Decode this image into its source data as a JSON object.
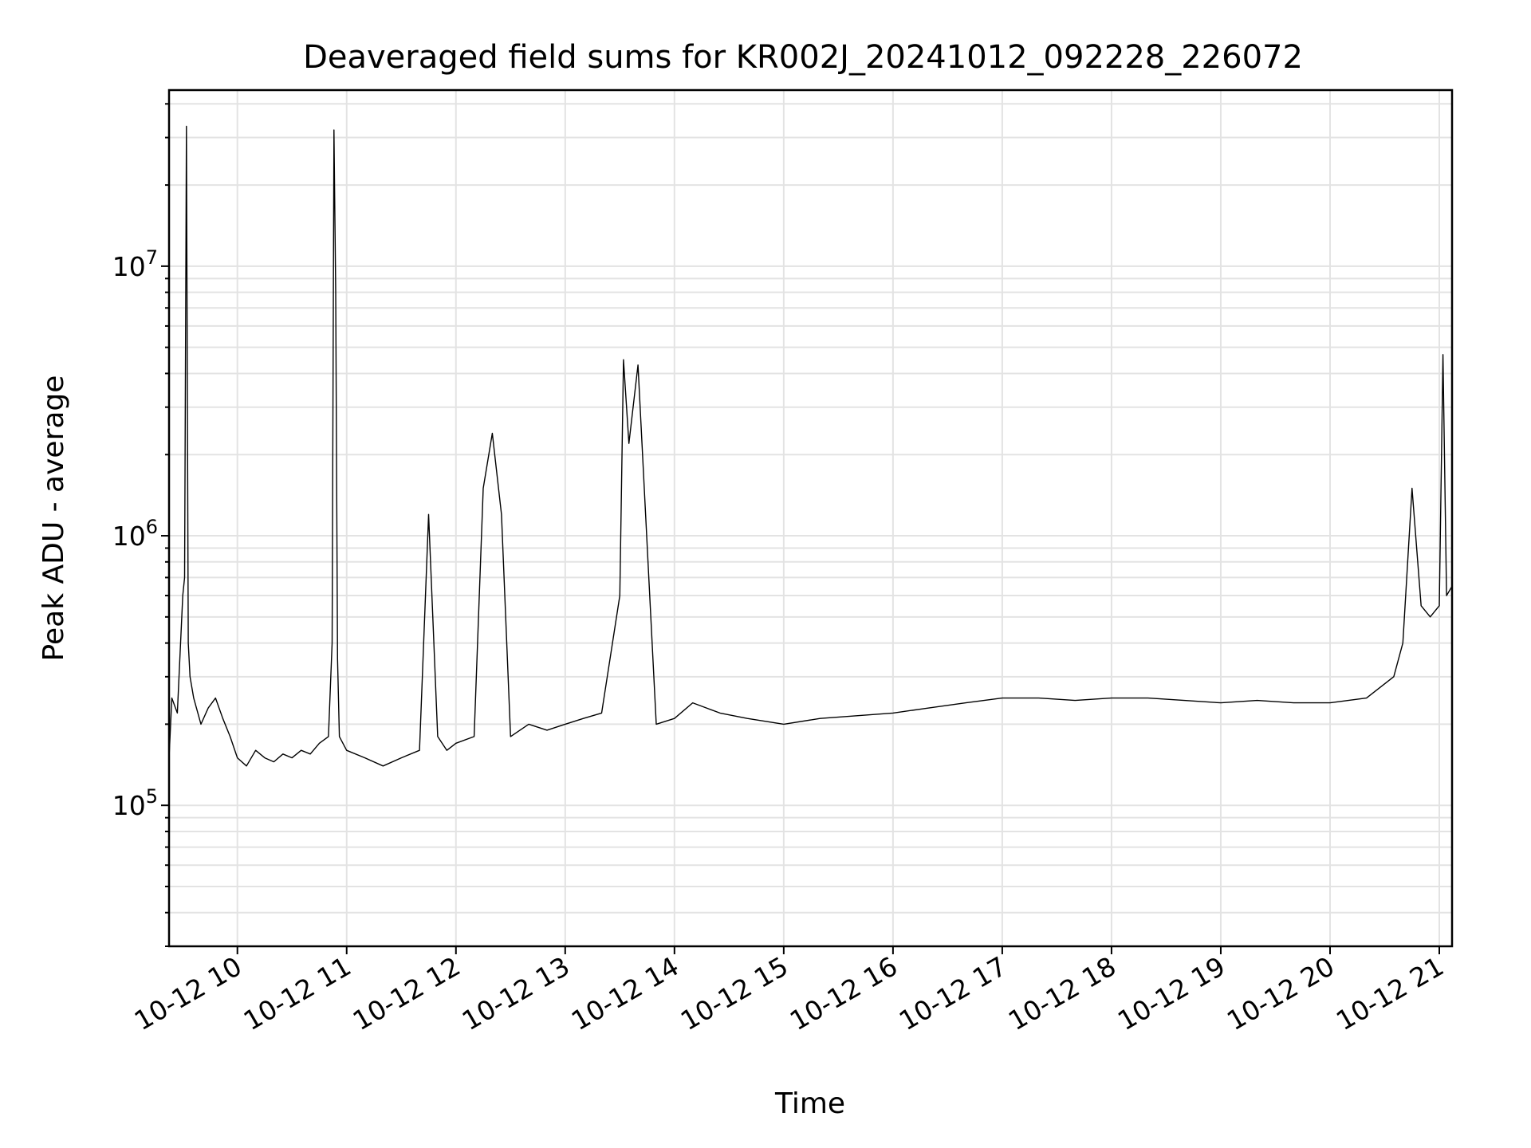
{
  "chart_data": {
    "type": "line",
    "title": "Deaveraged field sums for KR002J_20241012_092228_226072",
    "xlabel": "Time",
    "ylabel": "Peak ADU - average",
    "yscale": "log",
    "ylim": [
      30000,
      45000000
    ],
    "xlim": [
      "2024-10-12 09:22:28",
      "2024-10-12 21:07:00"
    ],
    "grid": true,
    "line_color": "#000000",
    "grid_color": "#e3e3e3",
    "x_ticks": [
      {
        "value": "2024-10-12 10:00",
        "label": "10-12 10"
      },
      {
        "value": "2024-10-12 11:00",
        "label": "10-12 11"
      },
      {
        "value": "2024-10-12 12:00",
        "label": "10-12 12"
      },
      {
        "value": "2024-10-12 13:00",
        "label": "10-12 13"
      },
      {
        "value": "2024-10-12 14:00",
        "label": "10-12 14"
      },
      {
        "value": "2024-10-12 15:00",
        "label": "10-12 15"
      },
      {
        "value": "2024-10-12 16:00",
        "label": "10-12 16"
      },
      {
        "value": "2024-10-12 17:00",
        "label": "10-12 17"
      },
      {
        "value": "2024-10-12 18:00",
        "label": "10-12 18"
      },
      {
        "value": "2024-10-12 19:00",
        "label": "10-12 19"
      },
      {
        "value": "2024-10-12 20:00",
        "label": "10-12 20"
      },
      {
        "value": "2024-10-12 21:00",
        "label": "10-12 21"
      }
    ],
    "y_ticks": [
      {
        "value": 100000,
        "base": "10",
        "exp": "5"
      },
      {
        "value": 1000000,
        "base": "10",
        "exp": "6"
      },
      {
        "value": 10000000,
        "base": "10",
        "exp": "7"
      }
    ],
    "series": [
      {
        "x": [
          "2024-10-12 09:22:28",
          "2024-10-12 09:24",
          "2024-10-12 09:27",
          "2024-10-12 09:30",
          "2024-10-12 09:31",
          "2024-10-12 09:32",
          "2024-10-12 09:33",
          "2024-10-12 09:34",
          "2024-10-12 09:36",
          "2024-10-12 09:40",
          "2024-10-12 09:44",
          "2024-10-12 09:48",
          "2024-10-12 09:52",
          "2024-10-12 09:56",
          "2024-10-12 10:00",
          "2024-10-12 10:05",
          "2024-10-12 10:10",
          "2024-10-12 10:15",
          "2024-10-12 10:20",
          "2024-10-12 10:25",
          "2024-10-12 10:30",
          "2024-10-12 10:35",
          "2024-10-12 10:40",
          "2024-10-12 10:45",
          "2024-10-12 10:50",
          "2024-10-12 10:52",
          "2024-10-12 10:53",
          "2024-10-12 10:54",
          "2024-10-12 10:55",
          "2024-10-12 10:56",
          "2024-10-12 11:00",
          "2024-10-12 11:10",
          "2024-10-12 11:20",
          "2024-10-12 11:30",
          "2024-10-12 11:40",
          "2024-10-12 11:45",
          "2024-10-12 11:50",
          "2024-10-12 11:55",
          "2024-10-12 12:00",
          "2024-10-12 12:10",
          "2024-10-12 12:15",
          "2024-10-12 12:20",
          "2024-10-12 12:25",
          "2024-10-12 12:30",
          "2024-10-12 12:40",
          "2024-10-12 12:50",
          "2024-10-12 13:00",
          "2024-10-12 13:10",
          "2024-10-12 13:20",
          "2024-10-12 13:30",
          "2024-10-12 13:32",
          "2024-10-12 13:35",
          "2024-10-12 13:40",
          "2024-10-12 13:50",
          "2024-10-12 14:00",
          "2024-10-12 14:10",
          "2024-10-12 14:25",
          "2024-10-12 14:40",
          "2024-10-12 15:00",
          "2024-10-12 15:20",
          "2024-10-12 15:40",
          "2024-10-12 16:00",
          "2024-10-12 16:20",
          "2024-10-12 16:40",
          "2024-10-12 17:00",
          "2024-10-12 17:20",
          "2024-10-12 17:40",
          "2024-10-12 18:00",
          "2024-10-12 18:20",
          "2024-10-12 18:40",
          "2024-10-12 19:00",
          "2024-10-12 19:20",
          "2024-10-12 19:40",
          "2024-10-12 20:00",
          "2024-10-12 20:20",
          "2024-10-12 20:35",
          "2024-10-12 20:40",
          "2024-10-12 20:45",
          "2024-10-12 20:50",
          "2024-10-12 20:55",
          "2024-10-12 21:00",
          "2024-10-12 21:02",
          "2024-10-12 21:04",
          "2024-10-12 21:07"
        ],
        "values": [
          150000,
          250000,
          220000,
          600000,
          700000,
          33000000,
          400000,
          300000,
          250000,
          200000,
          230000,
          250000,
          210000,
          180000,
          150000,
          140000,
          160000,
          150000,
          145000,
          155000,
          150000,
          160000,
          155000,
          170000,
          180000,
          400000,
          32000000,
          8000000,
          350000,
          180000,
          160000,
          150000,
          140000,
          150000,
          160000,
          1200000,
          180000,
          160000,
          170000,
          180000,
          1500000,
          2400000,
          1200000,
          180000,
          200000,
          190000,
          200000,
          210000,
          220000,
          600000,
          4500000,
          2200000,
          4300000,
          200000,
          210000,
          240000,
          220000,
          210000,
          200000,
          210000,
          215000,
          220000,
          230000,
          240000,
          250000,
          250000,
          245000,
          250000,
          250000,
          245000,
          240000,
          245000,
          240000,
          240000,
          250000,
          300000,
          400000,
          1500000,
          550000,
          500000,
          550000,
          4700000,
          600000,
          650000
        ]
      }
    ]
  }
}
